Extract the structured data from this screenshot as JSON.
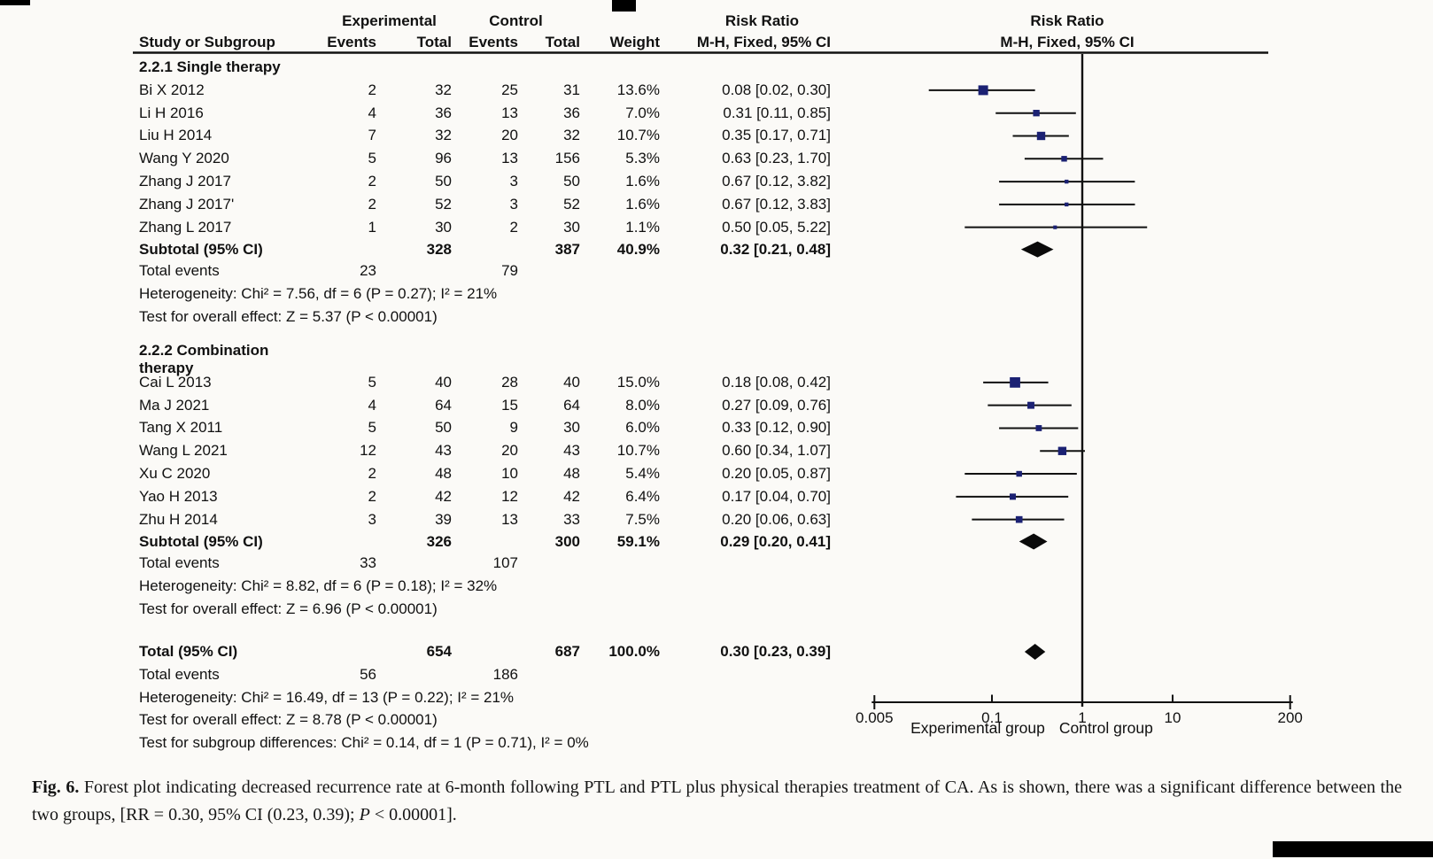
{
  "header": {
    "experimental": "Experimental",
    "control": "Control",
    "risk_ratio_left": "Risk Ratio",
    "risk_ratio_right": "Risk Ratio",
    "study": "Study or Subgroup",
    "events1": "Events",
    "total1": "Total",
    "events2": "Events",
    "total2": "Total",
    "weight": "Weight",
    "mh_left": "M-H, Fixed, 95% CI",
    "mh_right": "M-H, Fixed, 95% CI"
  },
  "chart_data": {
    "type": "forest",
    "effect_measure": "Risk Ratio",
    "method": "M-H, Fixed, 95% CI",
    "xscale": "log",
    "xlim": [
      0.005,
      200
    ],
    "ticks": [
      0.005,
      0.1,
      1,
      10,
      200
    ],
    "tick_labels": [
      "0.005",
      "0.1",
      "1",
      "10",
      "200"
    ],
    "axis_left_label": "Experimental group",
    "axis_right_label": "Control group",
    "rows": [
      {
        "kind": "group",
        "label": "2.2.1 Single therapy"
      },
      {
        "kind": "study",
        "label": "Bi X 2012",
        "e1": "2",
        "t1": "32",
        "e2": "25",
        "t2": "31",
        "weight": "13.6%",
        "w": 13.6,
        "ci": "0.08 [0.02, 0.30]",
        "rr": 0.08,
        "lo": 0.02,
        "hi": 0.3
      },
      {
        "kind": "study",
        "label": "Li H 2016",
        "e1": "4",
        "t1": "36",
        "e2": "13",
        "t2": "36",
        "weight": "7.0%",
        "w": 7.0,
        "ci": "0.31 [0.11, 0.85]",
        "rr": 0.31,
        "lo": 0.11,
        "hi": 0.85
      },
      {
        "kind": "study",
        "label": "Liu H 2014",
        "e1": "7",
        "t1": "32",
        "e2": "20",
        "t2": "32",
        "weight": "10.7%",
        "w": 10.7,
        "ci": "0.35 [0.17, 0.71]",
        "rr": 0.35,
        "lo": 0.17,
        "hi": 0.71
      },
      {
        "kind": "study",
        "label": "Wang Y 2020",
        "e1": "5",
        "t1": "96",
        "e2": "13",
        "t2": "156",
        "weight": "5.3%",
        "w": 5.3,
        "ci": "0.63 [0.23, 1.70]",
        "rr": 0.63,
        "lo": 0.23,
        "hi": 1.7
      },
      {
        "kind": "study",
        "label": "Zhang J 2017",
        "e1": "2",
        "t1": "50",
        "e2": "3",
        "t2": "50",
        "weight": "1.6%",
        "w": 1.6,
        "ci": "0.67 [0.12, 3.82]",
        "rr": 0.67,
        "lo": 0.12,
        "hi": 3.82
      },
      {
        "kind": "study",
        "label": "Zhang J 2017'",
        "e1": "2",
        "t1": "52",
        "e2": "3",
        "t2": "52",
        "weight": "1.6%",
        "w": 1.6,
        "ci": "0.67 [0.12, 3.83]",
        "rr": 0.67,
        "lo": 0.12,
        "hi": 3.83
      },
      {
        "kind": "study",
        "label": "Zhang L 2017",
        "e1": "1",
        "t1": "30",
        "e2": "2",
        "t2": "30",
        "weight": "1.1%",
        "w": 1.1,
        "ci": "0.50 [0.05, 5.22]",
        "rr": 0.5,
        "lo": 0.05,
        "hi": 5.22
      },
      {
        "kind": "subtotal",
        "label": "Subtotal (95% CI)",
        "t1": "328",
        "t2": "387",
        "weight": "40.9%",
        "ci": "0.32 [0.21, 0.48]",
        "rr": 0.32,
        "lo": 0.21,
        "hi": 0.48
      },
      {
        "kind": "events",
        "label": "Total events",
        "e1": "23",
        "e2": "79"
      },
      {
        "kind": "text",
        "label": "Heterogeneity: Chi² = 7.56, df = 6 (P = 0.27); I² = 21%"
      },
      {
        "kind": "text",
        "label": "Test for overall effect: Z = 5.37 (P < 0.00001)"
      },
      {
        "kind": "gap"
      },
      {
        "kind": "group",
        "label": "2.2.2 Combination therapy"
      },
      {
        "kind": "study",
        "label": "Cai L 2013",
        "e1": "5",
        "t1": "40",
        "e2": "28",
        "t2": "40",
        "weight": "15.0%",
        "w": 15.0,
        "ci": "0.18 [0.08, 0.42]",
        "rr": 0.18,
        "lo": 0.08,
        "hi": 0.42
      },
      {
        "kind": "study",
        "label": "Ma J 2021",
        "e1": "4",
        "t1": "64",
        "e2": "15",
        "t2": "64",
        "weight": "8.0%",
        "w": 8.0,
        "ci": "0.27 [0.09, 0.76]",
        "rr": 0.27,
        "lo": 0.09,
        "hi": 0.76
      },
      {
        "kind": "study",
        "label": "Tang X 2011",
        "e1": "5",
        "t1": "50",
        "e2": "9",
        "t2": "30",
        "weight": "6.0%",
        "w": 6.0,
        "ci": "0.33 [0.12, 0.90]",
        "rr": 0.33,
        "lo": 0.12,
        "hi": 0.9
      },
      {
        "kind": "study",
        "label": "Wang L 2021",
        "e1": "12",
        "t1": "43",
        "e2": "20",
        "t2": "43",
        "weight": "10.7%",
        "w": 10.7,
        "ci": "0.60 [0.34, 1.07]",
        "rr": 0.6,
        "lo": 0.34,
        "hi": 1.07
      },
      {
        "kind": "study",
        "label": "Xu C 2020",
        "e1": "2",
        "t1": "48",
        "e2": "10",
        "t2": "48",
        "weight": "5.4%",
        "w": 5.4,
        "ci": "0.20 [0.05, 0.87]",
        "rr": 0.2,
        "lo": 0.05,
        "hi": 0.87
      },
      {
        "kind": "study",
        "label": "Yao H 2013",
        "e1": "2",
        "t1": "42",
        "e2": "12",
        "t2": "42",
        "weight": "6.4%",
        "w": 6.4,
        "ci": "0.17 [0.04, 0.70]",
        "rr": 0.17,
        "lo": 0.04,
        "hi": 0.7
      },
      {
        "kind": "study",
        "label": "Zhu H 2014",
        "e1": "3",
        "t1": "39",
        "e2": "13",
        "t2": "33",
        "weight": "7.5%",
        "w": 7.5,
        "ci": "0.20 [0.06, 0.63]",
        "rr": 0.2,
        "lo": 0.06,
        "hi": 0.63
      },
      {
        "kind": "subtotal",
        "label": "Subtotal (95% CI)",
        "t1": "326",
        "t2": "300",
        "weight": "59.1%",
        "ci": "0.29 [0.20, 0.41]",
        "rr": 0.29,
        "lo": 0.2,
        "hi": 0.41
      },
      {
        "kind": "events",
        "label": "Total events",
        "e1": "33",
        "e2": "107"
      },
      {
        "kind": "text",
        "label": "Heterogeneity: Chi² = 8.82, df = 6 (P = 0.18); I² = 32%"
      },
      {
        "kind": "text",
        "label": "Test for overall effect: Z = 6.96 (P < 0.00001)"
      },
      {
        "kind": "gap"
      },
      {
        "kind": "total",
        "label": "Total (95% CI)",
        "t1": "654",
        "t2": "687",
        "weight": "100.0%",
        "ci": "0.30 [0.23, 0.39]",
        "rr": 0.3,
        "lo": 0.23,
        "hi": 0.39
      },
      {
        "kind": "events",
        "label": "Total events",
        "e1": "56",
        "e2": "186"
      },
      {
        "kind": "text",
        "label": "Heterogeneity: Chi² = 16.49, df = 13 (P = 0.22); I² = 21%"
      },
      {
        "kind": "text",
        "label": "Test for overall effect: Z = 8.78 (P < 0.00001)"
      },
      {
        "kind": "text",
        "label": "Test for subgroup differences: Chi² = 0.14, df = 1 (P = 0.71), I² = 0%"
      }
    ]
  },
  "caption": {
    "label": "Fig. 6.",
    "body": "Forest plot indicating decreased recurrence rate at 6-month following PTL and PTL plus physical therapies treatment of CA. As is shown, there was a significant difference between the two groups, [RR = 0.30, 95% CI (0.23, 0.39); ",
    "p_italic": "P",
    "tail": " < 0.00001]."
  },
  "colors": {
    "background": "#fbfaf7",
    "text": "#111111",
    "square": "#1b2173",
    "line": "#111111",
    "diamond": "#0a0a0a"
  }
}
